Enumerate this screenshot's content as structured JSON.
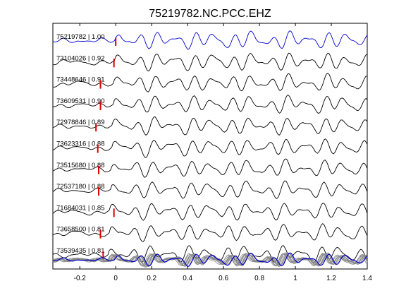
{
  "chart_data": {
    "type": "line",
    "title": "75219782.NC.PCC.EHZ",
    "xlabel": "",
    "ylabel": "",
    "xlim": [
      -0.35,
      1.4
    ],
    "xticks": [
      "-0.2",
      "0",
      "0.2",
      "0.4",
      "0.6",
      "0.8",
      "1",
      "1.2",
      "1.4"
    ],
    "xtick_values": [
      -0.2,
      0,
      0.2,
      0.4,
      0.6,
      0.8,
      1,
      1.2,
      1.4
    ],
    "grid": false,
    "colors": {
      "reference": "#0000cc",
      "trace": "#000000",
      "pick": "#dd0000",
      "overlay": "#888888"
    },
    "series": [
      {
        "name": "75219782 | 1.00",
        "pick_time": 0.0
      },
      {
        "name": "73104026 | 0.92",
        "pick_time": -0.01
      },
      {
        "name": "73448646 | 0.91",
        "pick_time": -0.085
      },
      {
        "name": "73609531 | 0.90",
        "pick_time": -0.085
      },
      {
        "name": "72978846 | 0.89",
        "pick_time": -0.11
      },
      {
        "name": "73623316 | 0.88",
        "pick_time": -0.1
      },
      {
        "name": "73515680 | 0.88",
        "pick_time": -0.095
      },
      {
        "name": "72537180 | 0.88",
        "pick_time": -0.095
      },
      {
        "name": "71684031 | 0.85",
        "pick_time": -0.01
      },
      {
        "name": "73658500 | 0.81",
        "pick_time": -0.085
      },
      {
        "name": "73539435 | 0.81",
        "pick_time": -0.07
      }
    ],
    "stack_label": ""
  }
}
